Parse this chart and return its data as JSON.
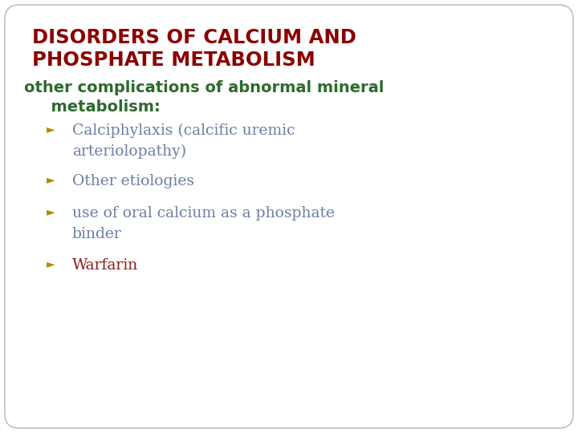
{
  "background_color": "#ffffff",
  "border_color": "#c0c0c0",
  "title_line1": "DISORDERS OF CALCIUM AND",
  "title_line2": "PHOSPHATE METABOLISM",
  "title_color": "#8b0000",
  "subtitle_line1": "other complications of abnormal mineral",
  "subtitle_line2": "  metabolism:",
  "subtitle_color": "#2d6a2d",
  "bullet_color": "#b8860b",
  "bullet_text_color": "#6b7fa3",
  "warfarin_color": "#8b1a1a",
  "figsize": [
    7.2,
    5.4
  ],
  "dpi": 100
}
